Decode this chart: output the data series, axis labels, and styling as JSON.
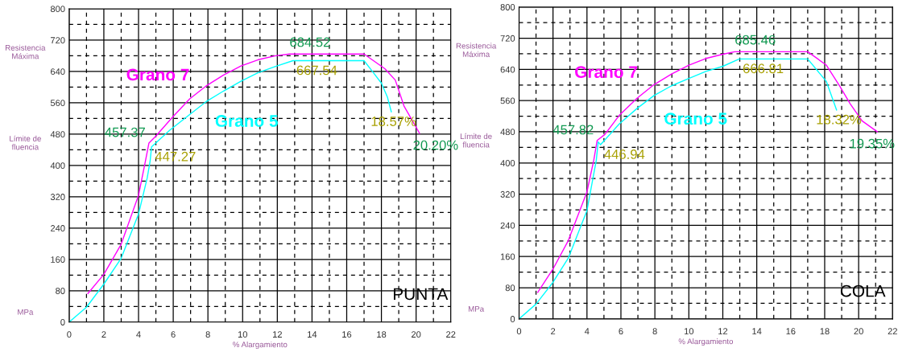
{
  "chart_data": [
    {
      "type": "line",
      "xlabel": "% Alargamiento",
      "xlim": [
        0,
        22
      ],
      "ylim": [
        0,
        800
      ],
      "grid": true,
      "xticks": [
        0,
        {
          "value": 1,
          "label": null
        },
        2,
        {
          "value": 3,
          "label": null
        },
        4,
        {
          "value": 5,
          "label": null
        },
        6,
        {
          "value": 7,
          "label": null
        },
        8,
        {
          "value": 9,
          "label": null
        },
        10,
        {
          "value": 11,
          "label": null
        },
        12,
        {
          "value": 13,
          "label": null
        },
        14,
        {
          "value": 15,
          "label": null
        },
        16,
        {
          "value": 17,
          "label": null
        },
        18,
        {
          "value": 19,
          "label": null
        },
        20,
        {
          "value": 21,
          "label": null
        },
        22
      ],
      "yticks": [
        0,
        {
          "value": 40,
          "label": null
        },
        80,
        {
          "value": 120,
          "label": null
        },
        160,
        {
          "value": 200,
          "label": null
        },
        240,
        {
          "value": 280,
          "label": null
        },
        320,
        {
          "value": 360,
          "label": null
        },
        400,
        {
          "value": 440,
          "label": null
        },
        480,
        {
          "value": 520,
          "label": null
        },
        560,
        {
          "value": 600,
          "label": null
        },
        640,
        {
          "value": 680,
          "label": null
        },
        720,
        {
          "value": 760,
          "label": null
        },
        800
      ],
      "series": [
        {
          "name": "Grano 7",
          "color": "#ff00ff",
          "x": [
            1.08,
            2,
            3,
            4,
            4.4,
            4.6,
            4.96,
            5.95,
            6.95,
            7.9,
            8.9,
            9.9,
            10.9,
            11.9,
            12.7,
            17.0,
            18.2,
            18.8,
            19.3,
            20.2
          ],
          "values": [
            73,
            122,
            199,
            324,
            412,
            457.37,
            473,
            523,
            570,
            603,
            631,
            654,
            670,
            680,
            684.52,
            684.52,
            647,
            618,
            552,
            482
          ]
        },
        {
          "name": "Grano 5",
          "color": "#00ffff",
          "x": [
            0,
            1,
            2,
            3,
            4,
            4.5,
            4.67,
            4.75,
            5.8,
            6.95,
            7.9,
            8.9,
            9.9,
            10.9,
            11.9,
            12.9,
            17.0,
            17.5,
            18.0,
            18.35,
            18.57
          ],
          "values": [
            0,
            38,
            97,
            163,
            276,
            368,
            412,
            447.27,
            490,
            530,
            563,
            590,
            615,
            637,
            653,
            667.54,
            667.54,
            639,
            610,
            574,
            537
          ]
        }
      ],
      "annotations": [
        {
          "text": "684.52",
          "x": 12.7,
          "y": 684.52
        },
        {
          "text": "667.54",
          "x": 12.9,
          "y": 667.54
        },
        {
          "text": "457.37",
          "x": 4.6,
          "y": 457.37
        },
        {
          "text": "447.27",
          "x": 4.75,
          "y": 447.27
        },
        {
          "text": "18.57%",
          "x": 18.57,
          "y": 537
        },
        {
          "text": "20.20%",
          "x": 20.2,
          "y": 482
        },
        "Resistencia\nMáxima",
        "Límite de\nfluencia",
        "MPa",
        "PUNTA"
      ]
    },
    {
      "type": "line",
      "xlabel": "% Alargamiento",
      "xlim": [
        0,
        22
      ],
      "ylim": [
        0,
        800
      ],
      "grid": true,
      "xticks": [
        0,
        {
          "value": 1,
          "label": null
        },
        2,
        {
          "value": 3,
          "label": null
        },
        4,
        {
          "value": 5,
          "label": null
        },
        6,
        {
          "value": 7,
          "label": null
        },
        8,
        {
          "value": 9,
          "label": null
        },
        10,
        {
          "value": 11,
          "label": null
        },
        12,
        {
          "value": 13,
          "label": null
        },
        14,
        {
          "value": 15,
          "label": null
        },
        16,
        {
          "value": 17,
          "label": null
        },
        18,
        {
          "value": 19,
          "label": null
        },
        20,
        {
          "value": 21,
          "label": null
        },
        22
      ],
      "yticks": [
        0,
        {
          "value": 40,
          "label": null
        },
        80,
        {
          "value": 120,
          "label": null
        },
        160,
        {
          "value": 200,
          "label": null
        },
        240,
        {
          "value": 280,
          "label": null
        },
        320,
        {
          "value": 360,
          "label": null
        },
        400,
        {
          "value": 440,
          "label": null
        },
        480,
        {
          "value": 520,
          "label": null
        },
        560,
        {
          "value": 600,
          "label": null
        },
        640,
        {
          "value": 680,
          "label": null
        },
        720,
        {
          "value": 760,
          "label": null
        },
        800
      ],
      "series": [
        {
          "name": "Grano 7",
          "color": "#ff00ff",
          "x": [
            1.1,
            2,
            2.9,
            4,
            4.4,
            4.6,
            5.05,
            5.9,
            6.95,
            7.95,
            8.98,
            10,
            11,
            12,
            12.7,
            17.0,
            18.1,
            18.9,
            19.5,
            20.2,
            21.1
          ],
          "values": [
            68,
            128,
            201,
            326,
            407,
            457.82,
            473,
            522,
            566,
            601,
            628,
            651,
            668,
            679,
            685.46,
            685.46,
            651,
            596,
            552,
            508,
            480
          ]
        },
        {
          "name": "Grano 5",
          "color": "#00ffff",
          "x": [
            0,
            1,
            2,
            2.9,
            4,
            4.55,
            4.66,
            4.8,
            5.9,
            6.95,
            7.95,
            8.98,
            10,
            11,
            12,
            12.97,
            17.0,
            18.1,
            18.7
          ],
          "values": [
            0,
            38,
            94,
            156,
            278,
            407,
            454,
            446.94,
            500,
            540,
            573,
            598,
            617,
            635,
            648,
            666.81,
            666.81,
            609,
            536
          ]
        }
      ],
      "annotations": [
        {
          "text": "685.46",
          "x": 12.7,
          "y": 685.46
        },
        {
          "text": "666.81",
          "x": 12.97,
          "y": 666.81
        },
        {
          "text": "457.82",
          "x": 4.6,
          "y": 457.82
        },
        {
          "text": "446.94",
          "x": 4.8,
          "y": 446.94
        },
        {
          "text": "18.32%",
          "x": 18.7,
          "y": 536
        },
        {
          "text": "19.35%",
          "x": 21.1,
          "y": 480
        },
        "Resistencia\nMáxima",
        "Límite de\nfluencia",
        "MPa",
        "COLA"
      ]
    }
  ]
}
